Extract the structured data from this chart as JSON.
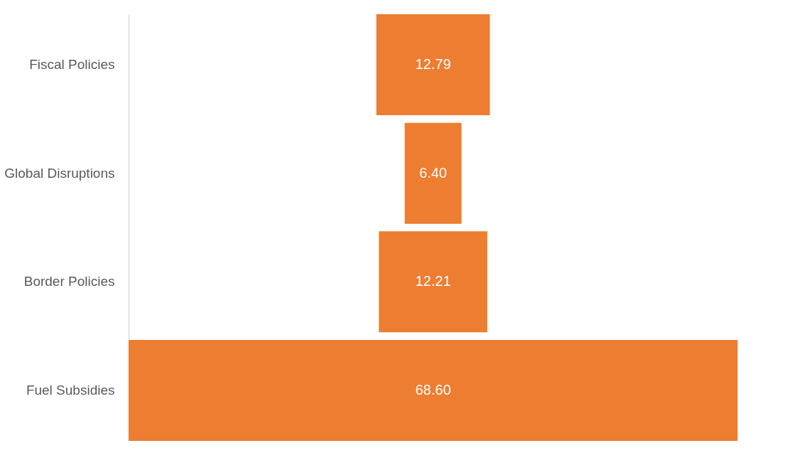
{
  "chart_data": {
    "type": "other",
    "categories": [
      "Fiscal Policies",
      "Global Disruptions",
      "Border Policies",
      "Fuel Subsidies"
    ],
    "values": [
      12.79,
      6.4,
      12.21,
      68.6
    ],
    "value_labels": [
      "12.79",
      "6.40",
      "12.21",
      "68.60"
    ],
    "color": "#ed7d31"
  }
}
